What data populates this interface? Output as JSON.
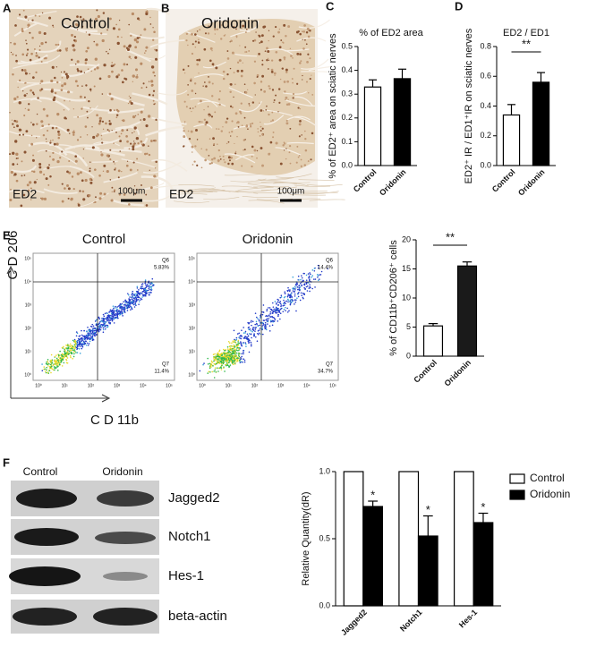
{
  "panels": {
    "letters": [
      "A",
      "B",
      "C",
      "D",
      "E",
      "F"
    ]
  },
  "micrographs": [
    {
      "title": "Control",
      "stain": "ED2",
      "scale": "100μm"
    },
    {
      "title": "Oridonin",
      "stain": "ED2",
      "scale": "100μm"
    }
  ],
  "flow": {
    "plots": [
      {
        "title": "Control",
        "upper_gate": "Q6",
        "upper_value": "5.83%",
        "lower_gate": "Q7",
        "lower_value": "11.4%"
      },
      {
        "title": "Oridonin",
        "upper_gate": "Q6",
        "upper_value": "14.4%",
        "lower_gate": "Q7",
        "lower_value": "34.7%"
      }
    ],
    "axis_ticks": [
      "10⁰",
      "10¹",
      "10²",
      "10³",
      "10⁴",
      "10⁵"
    ],
    "y_label": "C D 206",
    "x_label": "C D 11b"
  },
  "blot": {
    "columns": [
      "Control",
      "Oridonin"
    ],
    "rows": [
      "Jagged2",
      "Notch1",
      "Hes-1",
      "beta-actin"
    ]
  },
  "chart_data": [
    {
      "type": "bar",
      "title": "% of ED2 area",
      "y_label": "% of ED2⁺ area on sciatic nerves",
      "categories": [
        "Control",
        "Oridonin"
      ],
      "values": [
        0.33,
        0.365
      ],
      "errors": [
        0.03,
        0.04
      ],
      "colors": [
        "#ffffff",
        "#000000"
      ],
      "ylim": [
        0,
        0.5
      ],
      "yticks": [
        {
          "value": 0,
          "label": "0.0"
        },
        0.1,
        0.2,
        0.3,
        0.4,
        0.5
      ]
    },
    {
      "type": "bar",
      "title": "ED2 / ED1",
      "y_label": "ED2⁺ IR / ED1⁺IR on sciatic nerves",
      "categories": [
        "Control",
        "Oridonin"
      ],
      "values": [
        0.34,
        0.56
      ],
      "errors": [
        0.07,
        0.065
      ],
      "colors": [
        "#ffffff",
        "#000000"
      ],
      "ylim": [
        0,
        0.8
      ],
      "annotation": "**",
      "yticks": [
        {
          "value": 0,
          "label": "0.0"
        },
        0.2,
        0.4,
        0.6,
        0.8
      ]
    },
    {
      "type": "bar",
      "y_label": "% of CD11b⁺CD206⁺ cells",
      "categories": [
        "Control",
        "Oridonin"
      ],
      "values": [
        5.2,
        15.5
      ],
      "errors": [
        0.4,
        0.7
      ],
      "colors": [
        "#ffffff",
        "#1a1a1a"
      ],
      "ylim": [
        0,
        20
      ],
      "annotation": "**",
      "yticks": [
        0,
        5,
        10,
        15,
        20
      ]
    },
    {
      "type": "bar",
      "y_label": "Relative Quantity(dR)",
      "categories": [
        "Jagged2",
        "Notch1",
        "Hes-1"
      ],
      "series": [
        {
          "name": "Control",
          "color": "#ffffff",
          "values": [
            1,
            1,
            1
          ]
        },
        {
          "name": "Oridonin",
          "color": "#000000",
          "values": [
            0.74,
            0.52,
            0.62
          ],
          "errors": [
            0.04,
            0.15,
            0.07
          ],
          "annotations": [
            "*",
            "*",
            "*"
          ]
        }
      ],
      "legend": "upper right",
      "ylim": [
        0,
        1.0
      ],
      "yticks": [
        {
          "value": 0,
          "label": "0.0"
        },
        0.5,
        {
          "value": 1,
          "label": "1.0"
        }
      ]
    }
  ]
}
